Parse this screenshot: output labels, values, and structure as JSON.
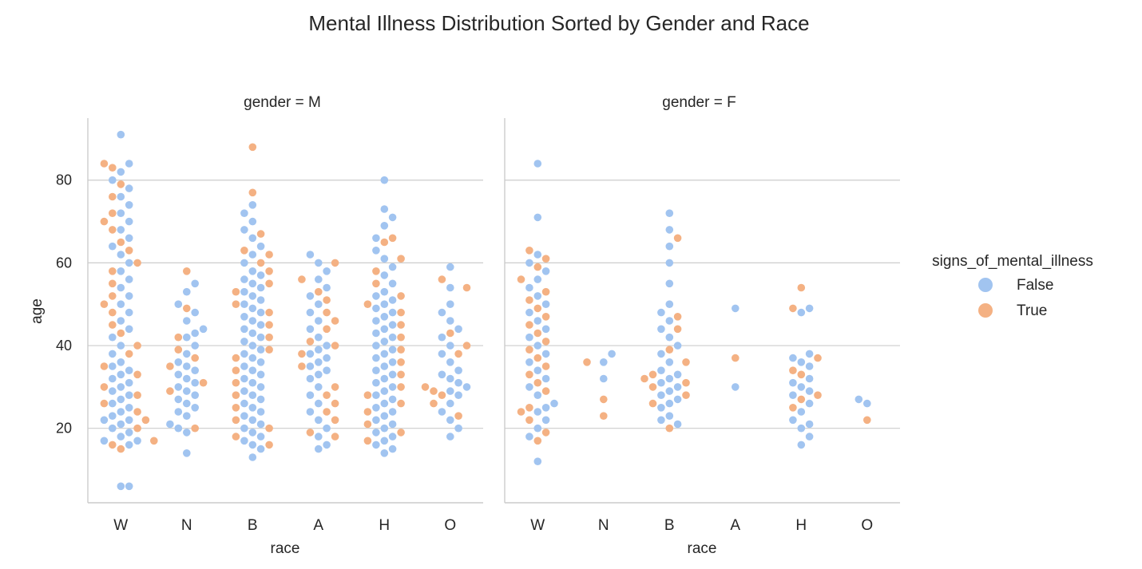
{
  "colors": {
    "false": "#a1c4f0",
    "true": "#f4b183",
    "grid": "#cccccc",
    "axis": "#cccccc",
    "text": "#262626"
  },
  "chart_data": {
    "type": "scatter",
    "subtype": "swarm",
    "title": "Mental Illness Distribution Sorted by Gender and Race",
    "xlabel": "race",
    "ylabel": "age",
    "categories": [
      "W",
      "N",
      "B",
      "A",
      "H",
      "O"
    ],
    "yticks": [
      20,
      40,
      60,
      80
    ],
    "ylim": [
      2,
      95
    ],
    "grid": "horizontal",
    "legend": {
      "title": "signs_of_mental_illness",
      "placement": "right",
      "entries": [
        {
          "label": "False",
          "color_key": "false"
        },
        {
          "label": "True",
          "color_key": "true"
        }
      ]
    },
    "panels": [
      {
        "title": "gender = M",
        "groups": [
          {
            "race": "W",
            "false": [
              6,
              6,
              16,
              17,
              17,
              18,
              19,
              20,
              21,
              22,
              22,
              23,
              24,
              25,
              26,
              27,
              28,
              29,
              30,
              31,
              32,
              33,
              34,
              35,
              36,
              38,
              40,
              42,
              44,
              46,
              48,
              50,
              52,
              54,
              56,
              58,
              60,
              62,
              64,
              66,
              68,
              70,
              72,
              74,
              76,
              78,
              80,
              82,
              84,
              91
            ],
            "true": [
              15,
              16,
              17,
              20,
              22,
              24,
              26,
              28,
              30,
              33,
              35,
              38,
              40,
              43,
              45,
              48,
              50,
              52,
              55,
              58,
              60,
              63,
              65,
              68,
              70,
              72,
              76,
              79,
              83,
              84
            ]
          },
          {
            "race": "N",
            "false": [
              14,
              19,
              20,
              21,
              23,
              24,
              25,
              26,
              27,
              28,
              29,
              30,
              31,
              32,
              33,
              34,
              35,
              36,
              38,
              40,
              42,
              43,
              44,
              46,
              48,
              50,
              53,
              55
            ],
            "true": [
              20,
              29,
              31,
              35,
              37,
              39,
              42,
              49,
              58
            ]
          },
          {
            "race": "B",
            "false": [
              13,
              15,
              16,
              17,
              18,
              19,
              20,
              21,
              22,
              23,
              24,
              25,
              26,
              27,
              28,
              29,
              30,
              31,
              32,
              33,
              34,
              35,
              36,
              37,
              38,
              39,
              40,
              41,
              42,
              43,
              44,
              45,
              46,
              47,
              48,
              49,
              50,
              51,
              52,
              53,
              54,
              55,
              56,
              57,
              58,
              60,
              62,
              64,
              66,
              68,
              70,
              72,
              74
            ],
            "true": [
              16,
              18,
              20,
              22,
              25,
              28,
              31,
              34,
              37,
              39,
              42,
              45,
              48,
              50,
              53,
              55,
              58,
              60,
              62,
              63,
              67,
              77,
              88
            ]
          },
          {
            "race": "A",
            "false": [
              15,
              16,
              18,
              20,
              22,
              24,
              26,
              28,
              30,
              32,
              33,
              34,
              35,
              36,
              37,
              38,
              39,
              40,
              42,
              44,
              46,
              48,
              50,
              52,
              54,
              56,
              58,
              60,
              62
            ],
            "true": [
              18,
              19,
              22,
              24,
              26,
              28,
              30,
              35,
              38,
              40,
              41,
              44,
              46,
              48,
              51,
              53,
              56,
              60
            ]
          },
          {
            "race": "H",
            "false": [
              14,
              15,
              16,
              17,
              18,
              19,
              20,
              21,
              22,
              23,
              24,
              25,
              26,
              27,
              28,
              29,
              30,
              31,
              32,
              33,
              34,
              35,
              36,
              37,
              38,
              39,
              40,
              41,
              42,
              43,
              44,
              45,
              46,
              47,
              48,
              49,
              50,
              51,
              52,
              53,
              55,
              57,
              59,
              61,
              63,
              66,
              69,
              71,
              73,
              80
            ],
            "true": [
              17,
              19,
              21,
              24,
              26,
              28,
              30,
              33,
              36,
              39,
              42,
              45,
              48,
              50,
              52,
              55,
              58,
              61,
              65,
              66
            ]
          },
          {
            "race": "O",
            "false": [
              18,
              20,
              22,
              24,
              26,
              28,
              29,
              30,
              31,
              32,
              33,
              34,
              36,
              38,
              40,
              42,
              44,
              46,
              48,
              50,
              54,
              59
            ],
            "true": [
              23,
              26,
              28,
              29,
              30,
              38,
              40,
              43,
              54,
              56
            ]
          }
        ]
      },
      {
        "title": "gender = F",
        "groups": [
          {
            "race": "W",
            "false": [
              12,
              18,
              20,
              22,
              24,
              25,
              26,
              28,
              30,
              32,
              34,
              36,
              38,
              40,
              42,
              44,
              46,
              48,
              50,
              52,
              54,
              56,
              58,
              60,
              62,
              71,
              84
            ],
            "true": [
              17,
              19,
              22,
              24,
              25,
              29,
              31,
              33,
              35,
              37,
              39,
              41,
              43,
              45,
              47,
              49,
              51,
              53,
              56,
              59,
              61,
              63
            ]
          },
          {
            "race": "N",
            "false": [
              32,
              36,
              38
            ],
            "true": [
              23,
              27,
              36
            ]
          },
          {
            "race": "B",
            "false": [
              21,
              22,
              23,
              25,
              26,
              27,
              28,
              29,
              30,
              31,
              32,
              33,
              34,
              36,
              38,
              40,
              42,
              44,
              46,
              48,
              50,
              55,
              60,
              64,
              68,
              72
            ],
            "true": [
              20,
              26,
              28,
              30,
              31,
              32,
              33,
              36,
              39,
              44,
              47,
              66
            ]
          },
          {
            "race": "A",
            "false": [
              30,
              49
            ],
            "true": [
              37
            ]
          },
          {
            "race": "H",
            "false": [
              16,
              18,
              20,
              21,
              22,
              24,
              26,
              28,
              29,
              30,
              31,
              32,
              35,
              36,
              37,
              38,
              48,
              49
            ],
            "true": [
              25,
              27,
              28,
              33,
              34,
              37,
              49,
              54
            ]
          },
          {
            "race": "O",
            "false": [
              26,
              27
            ],
            "true": [
              22
            ]
          }
        ]
      }
    ]
  }
}
